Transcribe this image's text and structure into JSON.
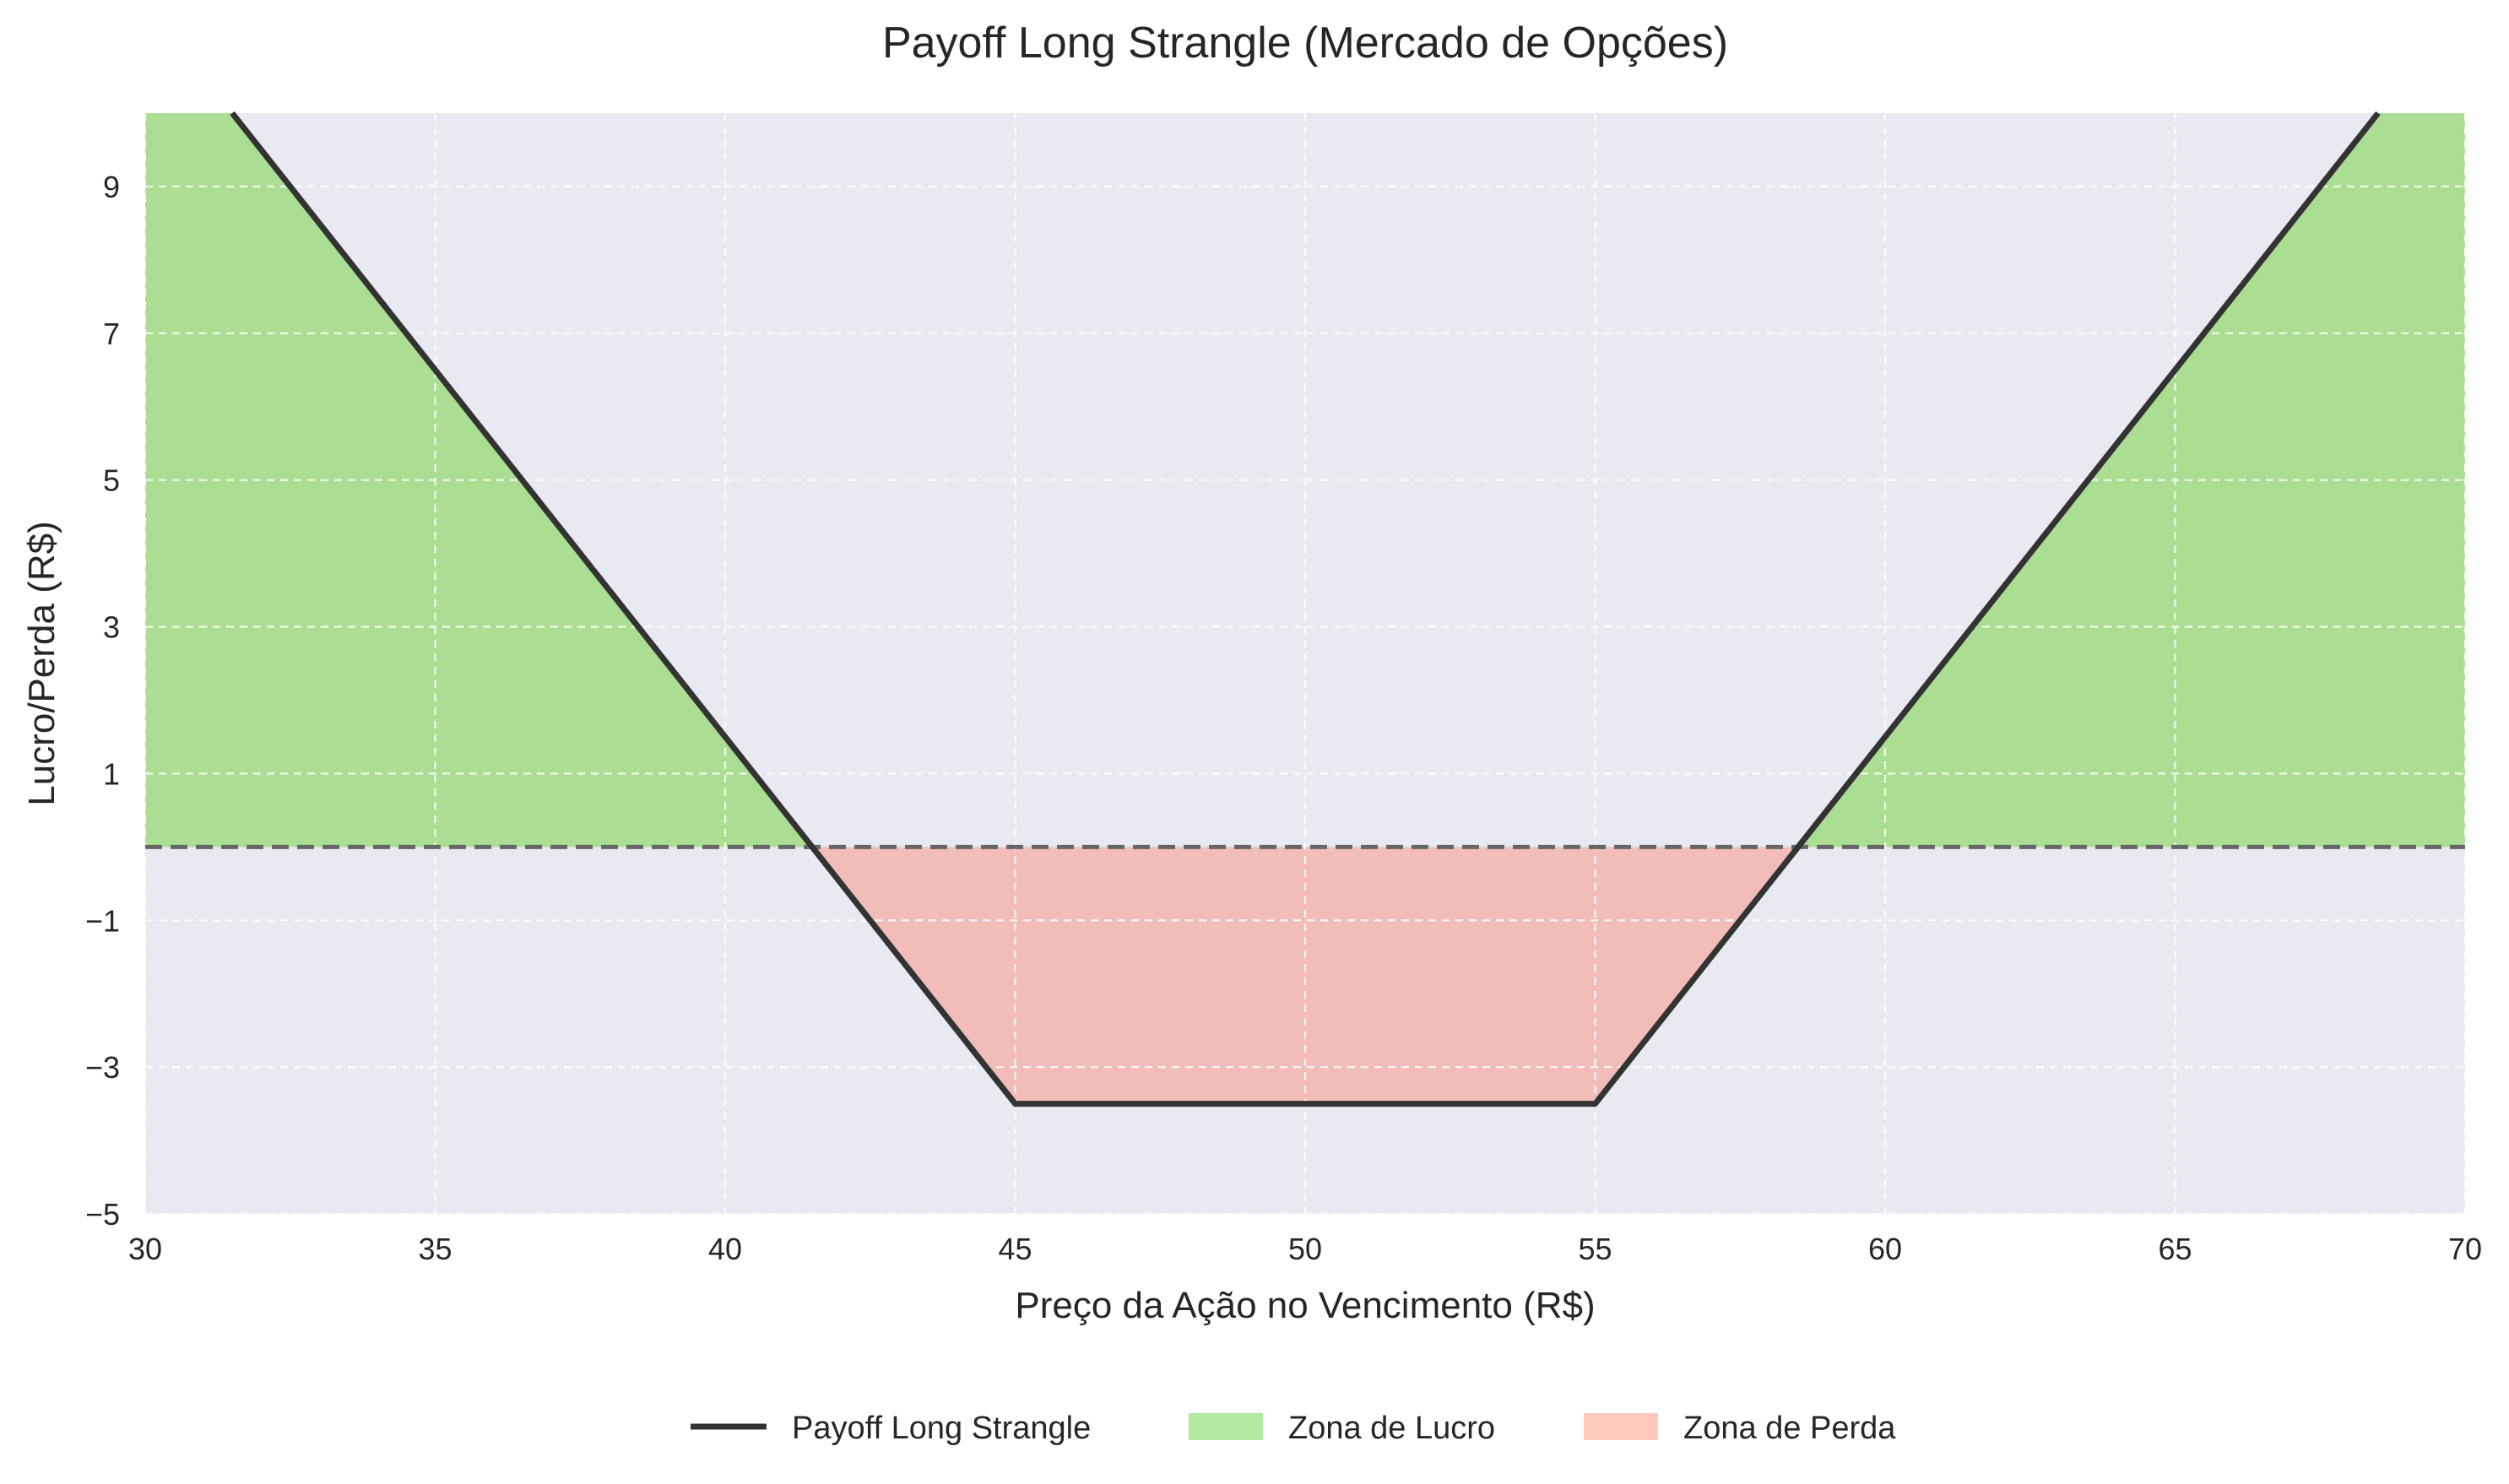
{
  "chart_data": {
    "type": "line",
    "title": "Payoff Long Strangle (Mercado de Opções)",
    "xlabel": "Preço da Ação no Vencimento (R$)",
    "ylabel": "Lucro/Perda (R$)",
    "xlim": [
      30,
      70
    ],
    "ylim": [
      -5,
      10
    ],
    "xticks": [
      30,
      35,
      40,
      45,
      50,
      55,
      60,
      65,
      70
    ],
    "xtick_labels": [
      "30",
      "35",
      "40",
      "45",
      "50",
      "55",
      "60",
      "65",
      "70"
    ],
    "yticks": [
      -5,
      -3,
      -1,
      1,
      3,
      5,
      7,
      9
    ],
    "ytick_labels": [
      "−5",
      "−3",
      "−1",
      "1",
      "3",
      "5",
      "7",
      "9"
    ],
    "grid": true,
    "zero_line": {
      "y": 0,
      "style": "dashed"
    },
    "series": [
      {
        "name": "Payoff Long Strangle",
        "color": "#333333",
        "x": [
          30,
          45,
          55,
          70
        ],
        "y": [
          11.5,
          -3.5,
          -3.5,
          11.5
        ]
      }
    ],
    "fills": [
      {
        "name": "Zona de Lucro",
        "color": "#abde93",
        "where": "payoff > 0",
        "region": "between payoff-curve and zero, capped at plot top"
      },
      {
        "name": "Zona de Perda",
        "color": "#f2bdb8",
        "legend_color": "#ffc8bd",
        "where": "payoff < 0",
        "region": "between payoff-curve and zero"
      }
    ],
    "legend": {
      "position": "bottom-center",
      "entries": [
        {
          "label": "Payoff Long Strangle",
          "kind": "line",
          "color": "#333333"
        },
        {
          "label": "Zona de Lucro",
          "kind": "patch",
          "color": "#b5e8a0"
        },
        {
          "label": "Zona de Perda",
          "kind": "patch",
          "color": "#ffc8bd"
        }
      ]
    },
    "colors": {
      "plot_background": "#e9e9f1",
      "grid": "#ffffff",
      "zero_line": "#666666"
    }
  }
}
